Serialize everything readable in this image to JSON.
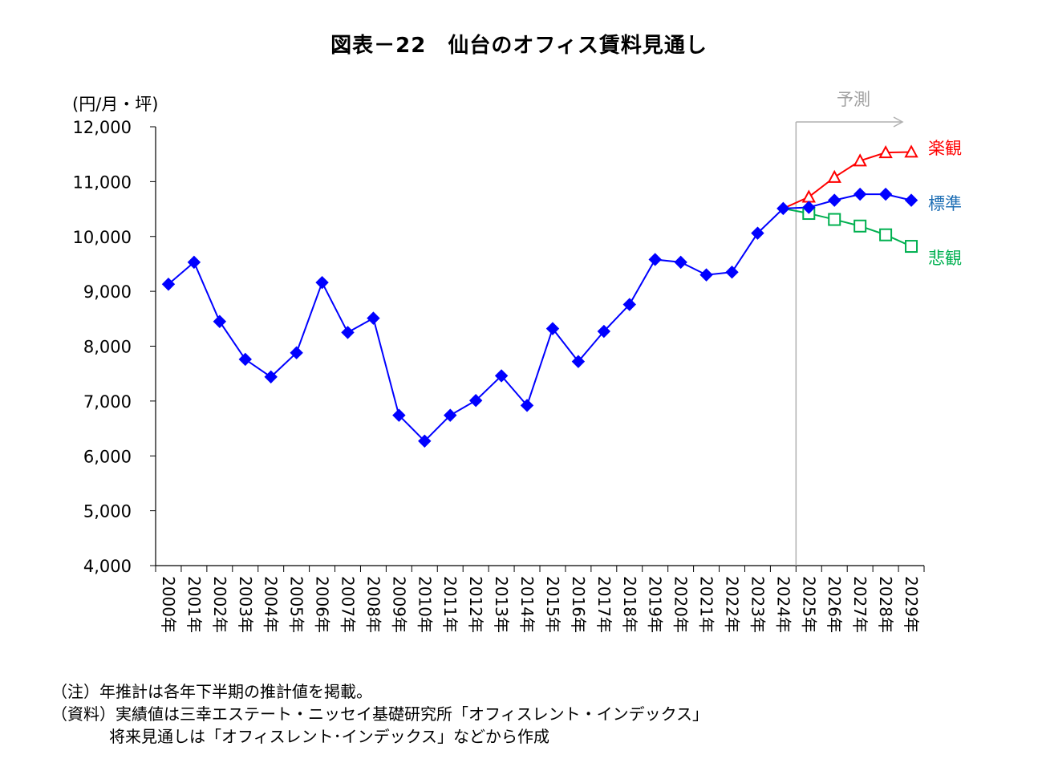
{
  "chart_data": {
    "type": "line",
    "title": "図表－22　仙台のオフィス賃料見通し",
    "ylabel": "(円/月・坪)",
    "ylim": [
      4000,
      12000
    ],
    "yticks": [
      "4,000",
      "5,000",
      "6,000",
      "7,000",
      "8,000",
      "9,000",
      "10,000",
      "11,000",
      "12,000"
    ],
    "categories": [
      "2000年",
      "2001年",
      "2002年",
      "2003年",
      "2004年",
      "2005年",
      "2006年",
      "2007年",
      "2008年",
      "2009年",
      "2010年",
      "2011年",
      "2012年",
      "2013年",
      "2014年",
      "2015年",
      "2016年",
      "2017年",
      "2018年",
      "2019年",
      "2020年",
      "2021年",
      "2022年",
      "2023年",
      "2024年",
      "2025年",
      "2026年",
      "2027年",
      "2028年",
      "2029年"
    ],
    "forecast_label": "予測",
    "forecast_start": "2024年",
    "series": [
      {
        "name": "標準",
        "color": "#0000ff",
        "label_color": "#1f6fb5",
        "marker": "diamond",
        "values": [
          9130,
          9530,
          8450,
          7760,
          7440,
          7880,
          9160,
          8250,
          8510,
          6740,
          6270,
          6740,
          7010,
          7460,
          6920,
          8320,
          7720,
          8270,
          8760,
          9580,
          9530,
          9300,
          9350,
          10060,
          10510,
          10530,
          10660,
          10770,
          10770,
          10660
        ]
      },
      {
        "name": "楽観",
        "color": "#ff0000",
        "label_color": "#ff0000",
        "marker": "triangle",
        "values": [
          null,
          null,
          null,
          null,
          null,
          null,
          null,
          null,
          null,
          null,
          null,
          null,
          null,
          null,
          null,
          null,
          null,
          null,
          null,
          null,
          null,
          null,
          null,
          null,
          10510,
          10720,
          11080,
          11380,
          11530,
          11540
        ]
      },
      {
        "name": "悲観",
        "color": "#00b050",
        "label_color": "#00b050",
        "marker": "square",
        "values": [
          null,
          null,
          null,
          null,
          null,
          null,
          null,
          null,
          null,
          null,
          null,
          null,
          null,
          null,
          null,
          null,
          null,
          null,
          null,
          null,
          null,
          null,
          null,
          null,
          10510,
          10420,
          10310,
          10190,
          10030,
          9820
        ]
      }
    ]
  },
  "notes": [
    "（注）年推計は各年下半期の推計値を掲載。",
    "（資料）実績値は三幸エステート・ニッセイ基礎研究所「オフィスレント・インデックス」",
    "将来見通しは「オフィスレント･インデックス」などから作成"
  ]
}
